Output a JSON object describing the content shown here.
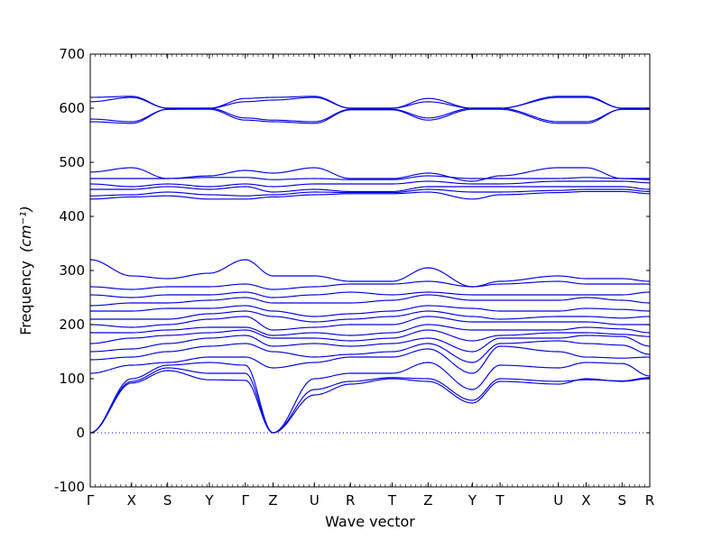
{
  "chart_data": {
    "type": "line",
    "title": "",
    "xlabel": "Wave vector",
    "ylabel": "Frequency",
    "ylabel_unit_math": "(cm⁻¹)",
    "ylim": [
      -100,
      700
    ],
    "yticks": [
      -100,
      0,
      100,
      200,
      300,
      400,
      500,
      600,
      700
    ],
    "grid": false,
    "legend": "none",
    "line_color": "#0000e0",
    "zero_line": {
      "y": 0,
      "style": "dotted"
    },
    "high_symmetry_points": [
      {
        "label": "Γ",
        "x": 0.0
      },
      {
        "label": "X",
        "x": 0.5
      },
      {
        "label": "S",
        "x": 0.935
      },
      {
        "label": "Y",
        "x": 1.44
      },
      {
        "label": "Γ",
        "x": 1.875
      },
      {
        "label": "Z",
        "x": 2.21
      },
      {
        "label": "U",
        "x": 2.71
      },
      {
        "label": "R",
        "x": 3.145
      },
      {
        "label": "T",
        "x": 3.65
      },
      {
        "label": "Z",
        "x": 4.085
      },
      {
        "label": "Y",
        "x": 4.62
      },
      {
        "label": "T",
        "x": 4.955
      },
      {
        "label": "U",
        "x": 5.66
      },
      {
        "label": "X",
        "x": 5.995
      },
      {
        "label": "S",
        "x": 6.43
      },
      {
        "label": "R",
        "x": 6.765
      }
    ],
    "series": [
      {
        "values": [
          0,
          92,
          115,
          98,
          97,
          0,
          70,
          90,
          100,
          95,
          55,
          95,
          90,
          100,
          95,
          100
        ]
      },
      {
        "values": [
          0,
          95,
          120,
          110,
          110,
          0,
          80,
          95,
          102,
          100,
          60,
          100,
          95,
          98,
          96,
          102
        ]
      },
      {
        "values": [
          0,
          100,
          125,
          130,
          125,
          0,
          100,
          110,
          110,
          130,
          80,
          125,
          120,
          130,
          128,
          105
        ]
      },
      {
        "values": [
          110,
          125,
          130,
          140,
          140,
          120,
          130,
          140,
          140,
          155,
          110,
          160,
          150,
          140,
          138,
          140
        ]
      },
      {
        "values": [
          135,
          140,
          150,
          160,
          165,
          150,
          140,
          145,
          150,
          165,
          130,
          165,
          170,
          165,
          162,
          145
        ]
      },
      {
        "values": [
          150,
          155,
          165,
          175,
          180,
          160,
          165,
          160,
          165,
          175,
          150,
          175,
          175,
          180,
          178,
          160
        ]
      },
      {
        "values": [
          165,
          175,
          180,
          185,
          190,
          175,
          175,
          170,
          175,
          190,
          170,
          180,
          185,
          185,
          182,
          178
        ]
      },
      {
        "values": [
          185,
          185,
          190,
          195,
          195,
          180,
          185,
          180,
          185,
          200,
          190,
          190,
          190,
          195,
          192,
          185
        ]
      },
      {
        "values": [
          200,
          195,
          200,
          210,
          215,
          190,
          195,
          200,
          200,
          215,
          205,
          205,
          205,
          205,
          200,
          200
        ]
      },
      {
        "values": [
          210,
          210,
          210,
          220,
          225,
          215,
          205,
          210,
          215,
          225,
          215,
          210,
          215,
          215,
          212,
          215
        ]
      },
      {
        "values": [
          225,
          225,
          230,
          230,
          235,
          225,
          215,
          220,
          225,
          235,
          230,
          225,
          225,
          230,
          228,
          225
        ]
      },
      {
        "values": [
          235,
          240,
          240,
          245,
          250,
          240,
          240,
          240,
          245,
          255,
          245,
          245,
          245,
          250,
          245,
          240
        ]
      },
      {
        "values": [
          255,
          250,
          255,
          255,
          260,
          250,
          255,
          260,
          255,
          260,
          255,
          255,
          255,
          255,
          255,
          260
        ]
      },
      {
        "values": [
          270,
          265,
          270,
          270,
          275,
          265,
          270,
          275,
          275,
          280,
          270,
          275,
          280,
          275,
          275,
          275
        ]
      },
      {
        "values": [
          320,
          290,
          285,
          295,
          320,
          290,
          290,
          280,
          280,
          305,
          270,
          280,
          290,
          285,
          285,
          280
        ]
      },
      {
        "values": [
          432,
          436,
          438,
          432,
          432,
          436,
          440,
          442,
          442,
          445,
          432,
          440,
          444,
          446,
          446,
          442
        ]
      },
      {
        "values": [
          438,
          440,
          445,
          440,
          438,
          440,
          445,
          444,
          444,
          450,
          445,
          445,
          448,
          450,
          450,
          446
        ]
      },
      {
        "values": [
          450,
          450,
          455,
          450,
          455,
          445,
          450,
          446,
          446,
          455,
          455,
          455,
          455,
          455,
          455,
          450
        ]
      },
      {
        "values": [
          460,
          455,
          460,
          455,
          460,
          455,
          460,
          460,
          460,
          465,
          460,
          460,
          465,
          465,
          465,
          462
        ]
      },
      {
        "values": [
          470,
          470,
          470,
          472,
          472,
          468,
          470,
          468,
          468,
          475,
          470,
          470,
          470,
          472,
          470,
          468
        ]
      },
      {
        "values": [
          482,
          490,
          470,
          475,
          485,
          480,
          490,
          470,
          470,
          480,
          465,
          475,
          490,
          490,
          470,
          470
        ]
      },
      {
        "values": [
          575,
          572,
          598,
          598,
          578,
          575,
          572,
          597,
          597,
          578,
          598,
          598,
          572,
          572,
          598,
          598
        ]
      },
      {
        "values": [
          580,
          575,
          598,
          600,
          582,
          578,
          575,
          598,
          598,
          582,
          600,
          600,
          575,
          575,
          598,
          598
        ]
      },
      {
        "values": [
          612,
          620,
          600,
          600,
          612,
          615,
          620,
          600,
          600,
          612,
          600,
          600,
          620,
          620,
          600,
          600
        ]
      },
      {
        "values": [
          620,
          622,
          600,
          600,
          618,
          620,
          622,
          600,
          600,
          618,
          600,
          600,
          622,
          622,
          600,
          600
        ]
      }
    ]
  }
}
